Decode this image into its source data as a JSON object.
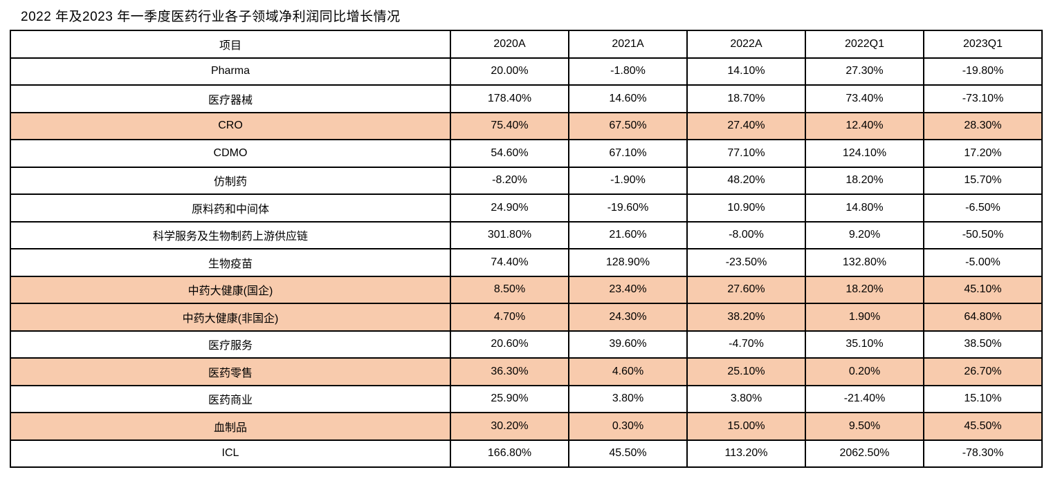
{
  "title": "2022 年及2023 年一季度医药行业各子领域净利润同比增长情况",
  "table": {
    "highlight_color": "#F8CBAD",
    "border_color": "#000000",
    "header": [
      "项目",
      "2020A",
      "2021A",
      "2022A",
      "2022Q1",
      "2023Q1"
    ],
    "rows": [
      {
        "label": "Pharma",
        "values": [
          "20.00%",
          "-1.80%",
          "14.10%",
          "27.30%",
          "-19.80%"
        ],
        "highlighted": false
      },
      {
        "label": "医疗器械",
        "values": [
          "178.40%",
          "14.60%",
          "18.70%",
          "73.40%",
          "-73.10%"
        ],
        "highlighted": false
      },
      {
        "label": "CRO",
        "values": [
          "75.40%",
          "67.50%",
          "27.40%",
          "12.40%",
          "28.30%"
        ],
        "highlighted": true
      },
      {
        "label": "CDMO",
        "values": [
          "54.60%",
          "67.10%",
          "77.10%",
          "124.10%",
          "17.20%"
        ],
        "highlighted": false
      },
      {
        "label": "仿制药",
        "values": [
          "-8.20%",
          "-1.90%",
          "48.20%",
          "18.20%",
          "15.70%"
        ],
        "highlighted": false
      },
      {
        "label": "原料药和中间体",
        "values": [
          "24.90%",
          "-19.60%",
          "10.90%",
          "14.80%",
          "-6.50%"
        ],
        "highlighted": false
      },
      {
        "label": "科学服务及生物制药上游供应链",
        "values": [
          "301.80%",
          "21.60%",
          "-8.00%",
          "9.20%",
          "-50.50%"
        ],
        "highlighted": false
      },
      {
        "label": "生物疫苗",
        "values": [
          "74.40%",
          "128.90%",
          "-23.50%",
          "132.80%",
          "-5.00%"
        ],
        "highlighted": false
      },
      {
        "label": "中药大健康(国企)",
        "values": [
          "8.50%",
          "23.40%",
          "27.60%",
          "18.20%",
          "45.10%"
        ],
        "highlighted": true
      },
      {
        "label": "中药大健康(非国企)",
        "values": [
          "4.70%",
          "24.30%",
          "38.20%",
          "1.90%",
          "64.80%"
        ],
        "highlighted": true
      },
      {
        "label": "医疗服务",
        "values": [
          "20.60%",
          "39.60%",
          "-4.70%",
          "35.10%",
          "38.50%"
        ],
        "highlighted": false
      },
      {
        "label": "医药零售",
        "values": [
          "36.30%",
          "4.60%",
          "25.10%",
          "0.20%",
          "26.70%"
        ],
        "highlighted": true
      },
      {
        "label": "医药商业",
        "values": [
          "25.90%",
          "3.80%",
          "3.80%",
          "-21.40%",
          "15.10%"
        ],
        "highlighted": false
      },
      {
        "label": "血制品",
        "values": [
          "30.20%",
          "0.30%",
          "15.00%",
          "9.50%",
          "45.50%"
        ],
        "highlighted": true
      },
      {
        "label": "ICL",
        "values": [
          "166.80%",
          "45.50%",
          "113.20%",
          "2062.50%",
          "-78.30%"
        ],
        "highlighted": false
      }
    ]
  },
  "chart_data": {
    "type": "table",
    "title": "2022 年及2023 年一季度医药行业各子领域净利润同比增长情况",
    "columns": [
      "项目",
      "2020A",
      "2021A",
      "2022A",
      "2022Q1",
      "2023Q1"
    ],
    "rows": [
      [
        "Pharma",
        20.0,
        -1.8,
        14.1,
        27.3,
        -19.8
      ],
      [
        "医疗器械",
        178.4,
        14.6,
        18.7,
        73.4,
        -73.1
      ],
      [
        "CRO",
        75.4,
        67.5,
        27.4,
        12.4,
        28.3
      ],
      [
        "CDMO",
        54.6,
        67.1,
        77.1,
        124.1,
        17.2
      ],
      [
        "仿制药",
        -8.2,
        -1.9,
        48.2,
        18.2,
        15.7
      ],
      [
        "原料药和中间体",
        24.9,
        -19.6,
        10.9,
        14.8,
        -6.5
      ],
      [
        "科学服务及生物制药上游供应链",
        301.8,
        21.6,
        -8.0,
        9.2,
        -50.5
      ],
      [
        "生物疫苗",
        74.4,
        128.9,
        -23.5,
        132.8,
        -5.0
      ],
      [
        "中药大健康(国企)",
        8.5,
        23.4,
        27.6,
        18.2,
        45.1
      ],
      [
        "中药大健康(非国企)",
        4.7,
        24.3,
        38.2,
        1.9,
        64.8
      ],
      [
        "医疗服务",
        20.6,
        39.6,
        -4.7,
        35.1,
        38.5
      ],
      [
        "医药零售",
        36.3,
        4.6,
        25.1,
        0.2,
        26.7
      ],
      [
        "医药商业",
        25.9,
        3.8,
        3.8,
        -21.4,
        15.1
      ],
      [
        "血制品",
        30.2,
        0.3,
        15.0,
        9.5,
        45.5
      ],
      [
        "ICL",
        166.8,
        45.5,
        113.2,
        2062.5,
        -78.3
      ]
    ],
    "value_unit": "%",
    "highlighted_rows": [
      "CRO",
      "中药大健康(国企)",
      "中药大健康(非国企)",
      "医药零售",
      "血制品"
    ]
  }
}
